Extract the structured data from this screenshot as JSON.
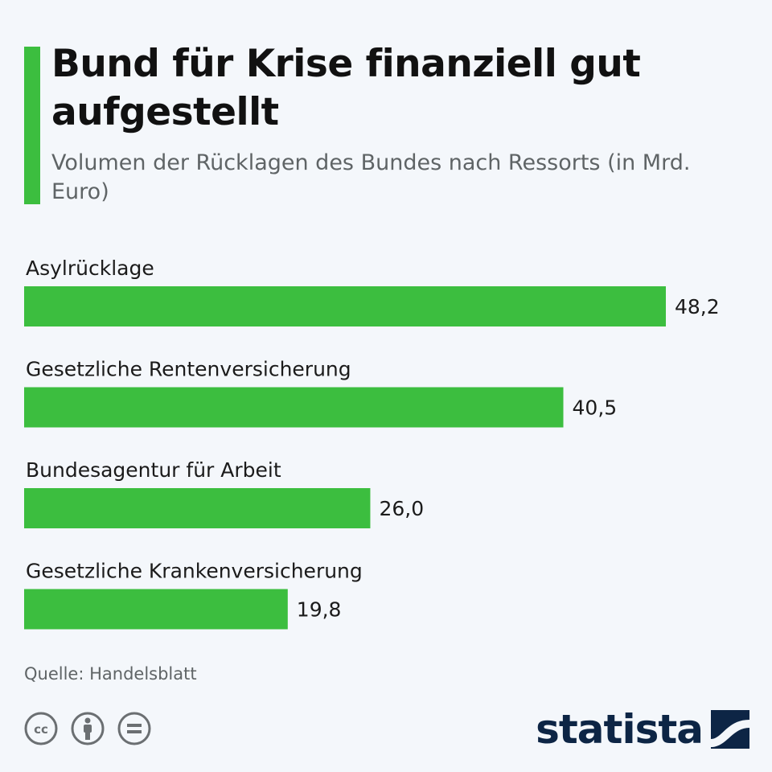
{
  "header": {
    "title": "Bund für Krise finanziell gut aufgestellt",
    "subtitle": "Volumen der Rücklagen des Bundes nach Ressorts (in Mrd. Euro)"
  },
  "chart_data": {
    "type": "bar",
    "orientation": "horizontal",
    "categories": [
      "Asylrücklage",
      "Gesetzliche Rentenversicherung",
      "Bundesagentur für Arbeit",
      "Gesetzliche Krankenversicherung"
    ],
    "values": [
      48.2,
      40.5,
      26.0,
      19.8
    ],
    "value_labels": [
      "48,2",
      "40,5",
      "26,0",
      "19,8"
    ],
    "bar_color": "#3cbe3f",
    "grid": false
  },
  "footer": {
    "source": "Quelle: Handelsblatt",
    "license_icons": [
      "cc-icon",
      "attribution-icon",
      "no-derivatives-icon"
    ],
    "brand": "statista"
  },
  "colors": {
    "accent": "#3cbe3f",
    "background": "#f4f7fb",
    "brand": "#0d2545",
    "muted_text": "#5f6466"
  }
}
